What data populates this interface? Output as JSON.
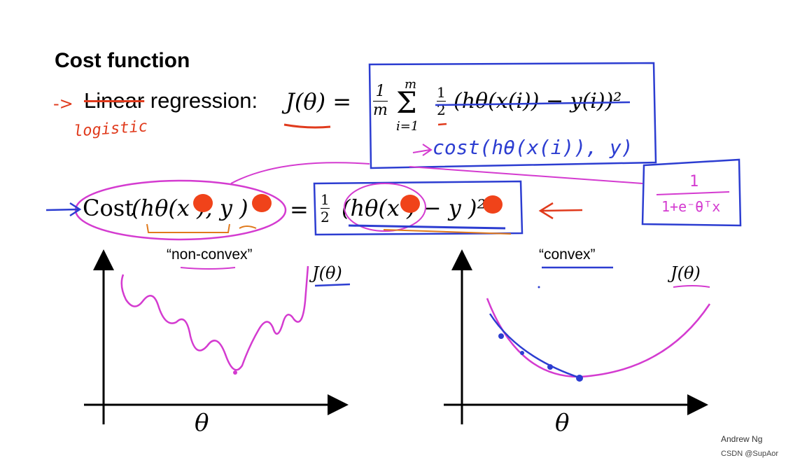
{
  "slide": {
    "title": "Cost function",
    "author": "Andrew Ng",
    "credit": "CSDN @SupAor"
  },
  "linear_regression": {
    "arrow": "->",
    "struck_word": "Linear",
    "label_rest": " regression:",
    "handwritten_logistic": "logistic",
    "lhs": "J(θ) =",
    "frac_1m_num": "1",
    "frac_1m_den": "m",
    "sum_upper": "m",
    "sum_sign": "Σ",
    "sum_lower": "i=1",
    "frac_half_num": "1",
    "frac_half_den": "2",
    "expr": "(hθ(x(i)) − y(i))²",
    "handwritten_cost": "cost(hθ(x(i)), y)",
    "handwritten_sigmoid_num": "1",
    "handwritten_sigmoid_den": "1+e⁻θᵀx"
  },
  "cost_row": {
    "cost_word": "Cost",
    "cost_args": "(hθ(x   ), y   )",
    "equals": "=",
    "frac_num": "1",
    "frac_den": "2",
    "rhs": "(hθ(x   ) − y   )²"
  },
  "plots": {
    "left_caption": "“non-convex”",
    "right_caption": "“convex”",
    "left_ylabel": "J(θ)",
    "right_ylabel": "J(θ)",
    "left_xlabel": "θ",
    "right_xlabel": "θ"
  },
  "colors": {
    "pen_red": "#e03a1c",
    "pen_blue": "#2c3dd1",
    "pen_magenta": "#d43bd0",
    "blob_red": "#f0431a"
  }
}
